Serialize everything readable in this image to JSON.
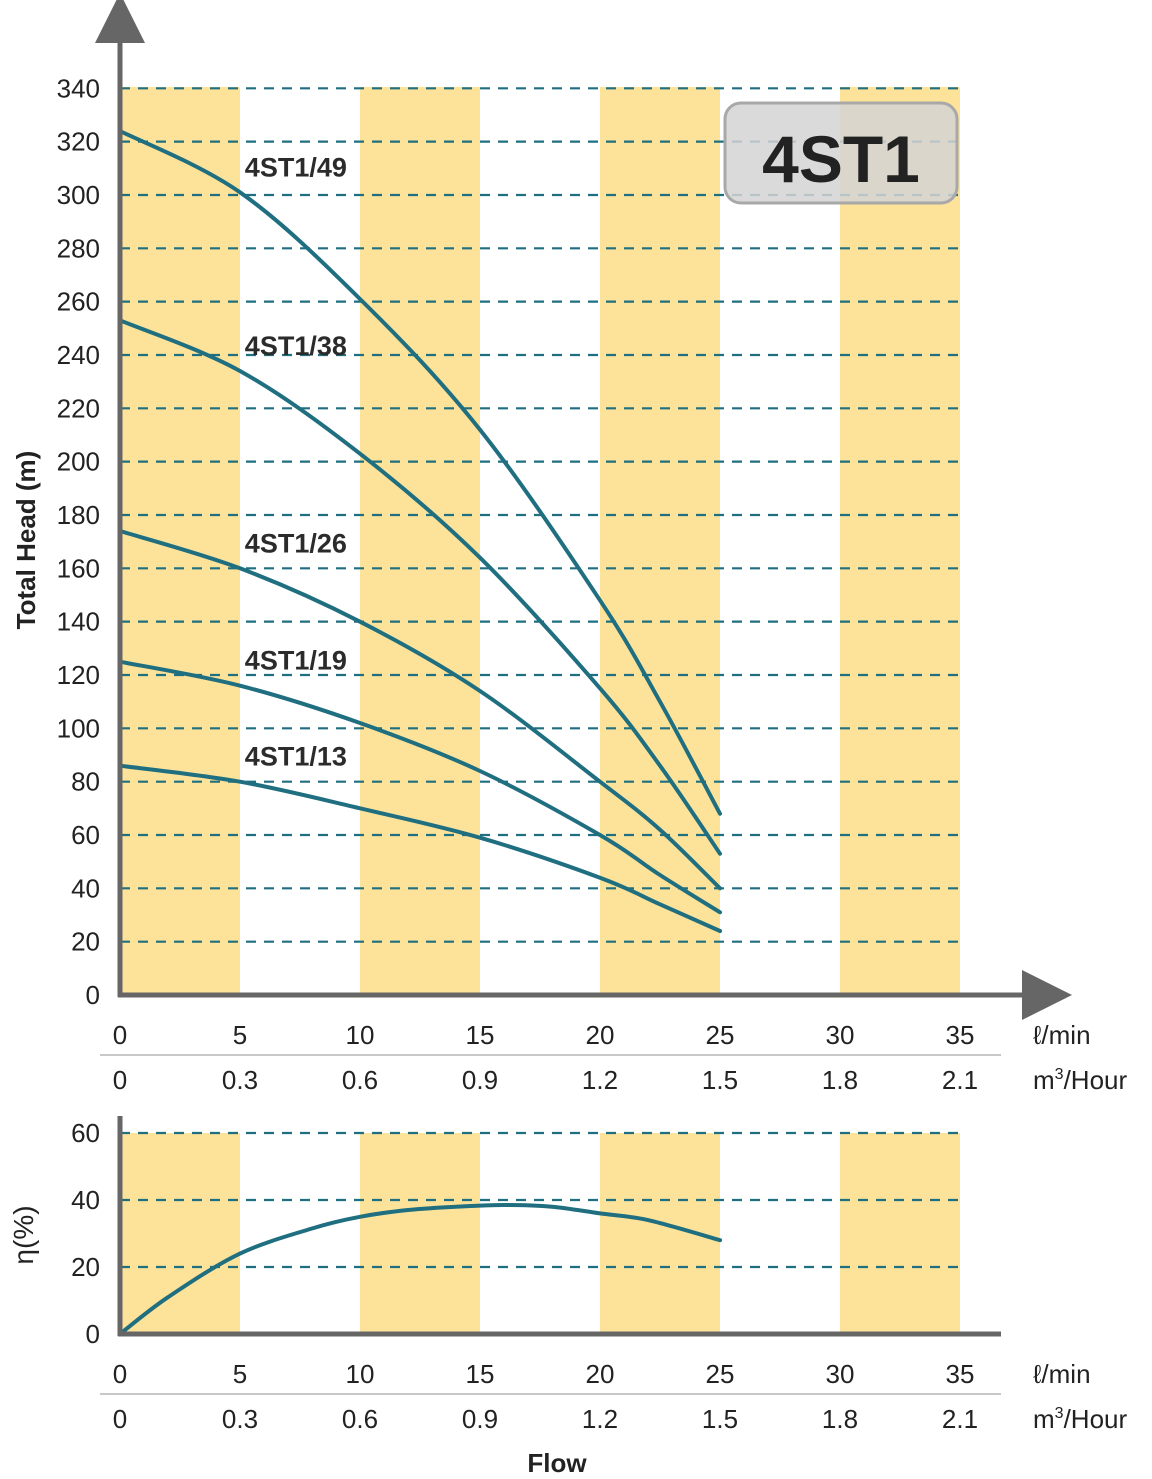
{
  "badge": "4ST1",
  "colors": {
    "band": "#fde39a",
    "curve": "#1f6f80",
    "grid": "#1f6f80",
    "axis": "#666666",
    "badge_fill": "#d3d3d3",
    "badge_border": "#a8a8a8"
  },
  "x_units": {
    "flow": "ℓ/min",
    "m3_prefix": "m",
    "m3_sup": "3",
    "m3_suffix": "/Hour"
  },
  "x_label": "Flow",
  "chart_data": [
    {
      "type": "line",
      "ylabel": "Total Head (m)",
      "ylim": [
        0,
        340
      ],
      "yticks": [
        "0",
        "20",
        "40",
        "60",
        "80",
        "100",
        "120",
        "140",
        "160",
        "180",
        "200",
        "220",
        "240",
        "260",
        "280",
        "300",
        "320",
        "340"
      ],
      "xlim": [
        0,
        35
      ],
      "xticks_lmin": [
        "0",
        "5",
        "10",
        "15",
        "20",
        "25",
        "30",
        "35"
      ],
      "xticks_m3h": [
        "0",
        "0.3",
        "0.6",
        "0.9",
        "1.2",
        "1.5",
        "1.8",
        "2.1"
      ],
      "grid": true,
      "series": [
        {
          "name": "4ST1/49",
          "x": [
            0,
            5,
            10,
            15,
            20,
            22.5,
            25
          ],
          "y": [
            324,
            301,
            261,
            212,
            148,
            110,
            68
          ]
        },
        {
          "name": "4ST1/38",
          "x": [
            0,
            5,
            10,
            15,
            20,
            22.5,
            25
          ],
          "y": [
            253,
            234,
            203,
            164,
            115,
            86,
            53
          ]
        },
        {
          "name": "4ST1/26",
          "x": [
            0,
            5,
            10,
            15,
            20,
            22.5,
            25
          ],
          "y": [
            174,
            160,
            140,
            114,
            80,
            62,
            40
          ]
        },
        {
          "name": "4ST1/19",
          "x": [
            0,
            5,
            10,
            15,
            20,
            22.5,
            25
          ],
          "y": [
            125,
            116,
            102,
            84,
            60,
            45,
            31
          ]
        },
        {
          "name": "4ST1/13",
          "x": [
            0,
            5,
            10,
            15,
            20,
            22.5,
            25
          ],
          "y": [
            86,
            80,
            70,
            59,
            44,
            34,
            24
          ]
        }
      ]
    },
    {
      "type": "line",
      "ylabel": "η(%)",
      "ylim": [
        0,
        60
      ],
      "yticks": [
        "0",
        "20",
        "40",
        "60"
      ],
      "xlim": [
        0,
        35
      ],
      "xticks_lmin": [
        "0",
        "5",
        "10",
        "15",
        "20",
        "25",
        "30",
        "35"
      ],
      "xticks_m3h": [
        "0",
        "0.3",
        "0.6",
        "0.9",
        "1.2",
        "1.5",
        "1.8",
        "2.1"
      ],
      "grid": true,
      "series": [
        {
          "name": "",
          "x": [
            0,
            2,
            5,
            8,
            10,
            12,
            14,
            16,
            18,
            20,
            22,
            25
          ],
          "y": [
            0,
            11,
            24,
            31.5,
            35,
            37,
            38,
            38.5,
            38,
            36,
            34,
            28
          ]
        }
      ]
    }
  ]
}
